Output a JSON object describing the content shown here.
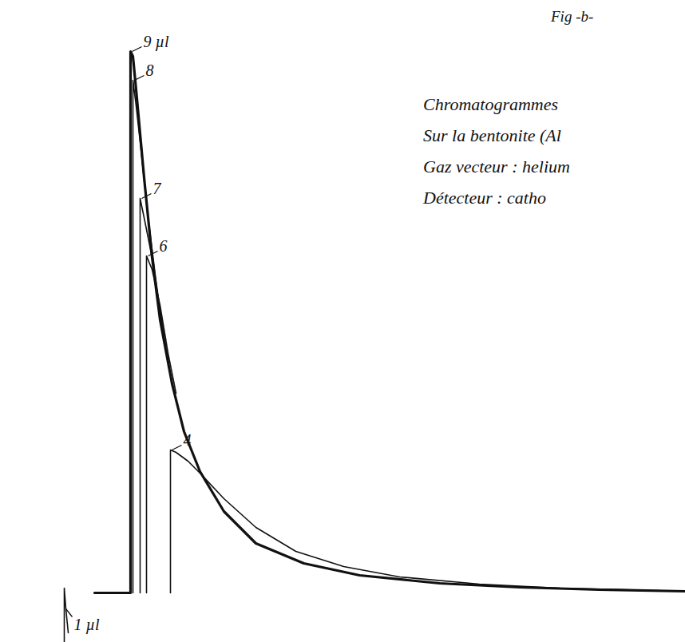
{
  "chart_data": {
    "type": "line",
    "title": "Fig -b-",
    "annotations": [
      "Chromatogrammes",
      "Sur la bentonite (Al",
      "Gaz vecteur : helium",
      "Détecteur : catho"
    ],
    "xlim": [
      0,
      858
    ],
    "ylim": [
      -62,
      742
    ],
    "xticks": [],
    "yticks": [],
    "tick_labels": false,
    "grid": false,
    "series": [
      {
        "name": "9 µl",
        "color": "#111111",
        "line_style": "bold",
        "x": [
          118,
          160,
          163,
          163,
          166,
          170,
          180,
          190,
          200,
          215,
          230,
          250,
          280,
          320,
          380,
          450,
          550,
          650,
          750,
          858
        ],
        "values": [
          0,
          0,
          0,
          678,
          672,
          630,
          520,
          420,
          342,
          262,
          202,
          152,
          102,
          62,
          37,
          22,
          12,
          7,
          4,
          2
        ]
      },
      {
        "name": "8",
        "color": "#111111",
        "line_style": "solid",
        "x": [
          166,
          166,
          170,
          175,
          185,
          195,
          205
        ],
        "values": [
          0,
          642,
          610,
          565,
          470,
          390,
          320
        ]
      },
      {
        "name": "7",
        "color": "#111111",
        "line_style": "solid",
        "x": [
          175,
          175,
          180,
          190,
          200,
          210
        ],
        "values": [
          0,
          494,
          470,
          420,
          352,
          290
        ]
      },
      {
        "name": "6",
        "color": "#111111",
        "line_style": "solid",
        "x": [
          183,
          183,
          190,
          200,
          210,
          220
        ],
        "values": [
          0,
          422,
          405,
          360,
          300,
          250
        ]
      },
      {
        "name": "4",
        "color": "#111111",
        "line_style": "solid",
        "x": [
          213,
          213,
          220,
          235,
          250,
          280,
          320,
          370,
          430,
          500,
          600,
          700,
          858
        ],
        "values": [
          0,
          179,
          176,
          165,
          150,
          118,
          82,
          52,
          33,
          20,
          11,
          6,
          2
        ]
      },
      {
        "name": "1 µl",
        "color": "#111111",
        "line_style": "solid",
        "x": [
          80,
          80,
          82,
          85
        ],
        "values": [
          -62,
          6,
          -20,
          -50
        ]
      }
    ]
  }
}
